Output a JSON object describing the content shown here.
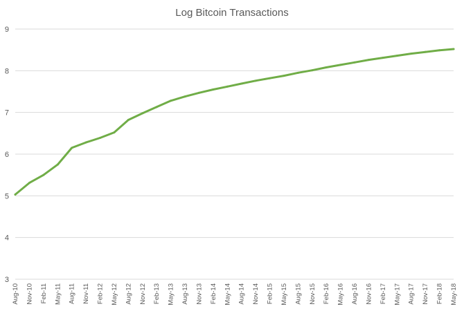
{
  "chart_data": {
    "type": "line",
    "title": "Log Bitcoin Transactions",
    "xlabel": "",
    "ylabel": "",
    "ylim": [
      3,
      9
    ],
    "yticks": [
      "3",
      "4",
      "5",
      "6",
      "7",
      "8",
      "9"
    ],
    "grid": true,
    "x": [
      "Aug-10",
      "Nov-10",
      "Feb-11",
      "May-11",
      "Aug-11",
      "Nov-11",
      "Feb-12",
      "May-12",
      "Aug-12",
      "Nov-12",
      "Feb-13",
      "May-13",
      "Aug-13",
      "Nov-13",
      "Feb-14",
      "May-14",
      "Aug-14",
      "Nov-14",
      "Feb-15",
      "May-15",
      "Aug-15",
      "Nov-15",
      "Feb-16",
      "May-16",
      "Aug-16",
      "Nov-16",
      "Feb-17",
      "May-17",
      "Aug-17",
      "Nov-17",
      "Feb-18",
      "May-18"
    ],
    "series": [
      {
        "color": "#70ad47",
        "values": [
          5.03,
          5.31,
          5.5,
          5.75,
          6.15,
          6.28,
          6.39,
          6.52,
          6.82,
          6.98,
          7.13,
          7.28,
          7.38,
          7.47,
          7.55,
          7.62,
          7.69,
          7.76,
          7.82,
          7.88,
          7.95,
          8.01,
          8.08,
          8.14,
          8.2,
          8.26,
          8.31,
          8.36,
          8.41,
          8.45,
          8.49,
          8.52
        ]
      }
    ]
  }
}
